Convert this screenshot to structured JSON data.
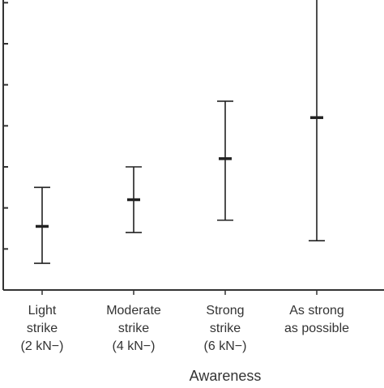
{
  "chart_data": {
    "type": "errorbar",
    "title": "",
    "xlabel": "Awareness",
    "ylabel": "",
    "ylim": [
      0,
      7.5
    ],
    "grid": false,
    "categories": [
      {
        "lines": [
          "Light",
          "strike",
          "(2 kN−)"
        ]
      },
      {
        "lines": [
          "Moderate",
          "strike",
          "(4 kN−)"
        ]
      },
      {
        "lines": [
          "Strong",
          "strike",
          "(6 kN−)"
        ]
      },
      {
        "lines": [
          "As strong",
          "as possible"
        ]
      }
    ],
    "series": [
      {
        "points": [
          {
            "mean": 1.55,
            "lower": 0.65,
            "upper": 2.5
          },
          {
            "mean": 2.2,
            "lower": 1.4,
            "upper": 3.0
          },
          {
            "mean": 3.2,
            "lower": 1.7,
            "upper": 4.6
          },
          {
            "mean": 4.2,
            "lower": 1.2,
            "upper": 7.25
          }
        ]
      }
    ]
  },
  "colors": {
    "axis": "#333333",
    "bars": "#222222",
    "text": "#333333"
  }
}
